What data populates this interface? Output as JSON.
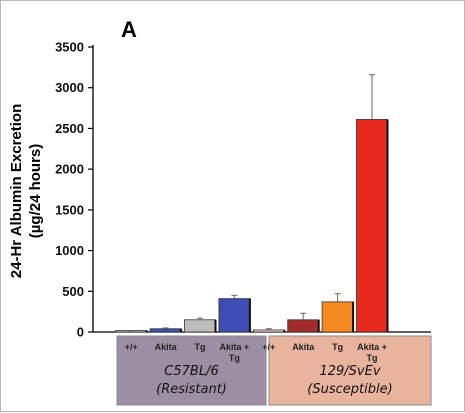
{
  "panel_label": "A",
  "chart_data": {
    "type": "bar",
    "title": "",
    "xlabel": "",
    "ylabel": "24-Hr Albumin Excretion",
    "ylabel_line2": "(µg/24 hours)",
    "ylim": [
      0,
      3500
    ],
    "yticks": [
      0,
      500,
      1000,
      1500,
      2000,
      2500,
      3000,
      3500
    ],
    "ytick_labels": [
      "0",
      "500",
      "1000",
      "1500",
      "2000",
      "2500",
      "3000",
      "3500"
    ],
    "grid": false,
    "categories": [
      "+/+",
      "Akita",
      "Tg",
      "Akita + Tg",
      "+/+",
      "Akita",
      "Tg",
      "Akita + Tg"
    ],
    "values": [
      10,
      40,
      150,
      410,
      25,
      150,
      370,
      2610
    ],
    "errors": [
      5,
      10,
      20,
      40,
      15,
      80,
      100,
      550
    ],
    "colors": [
      "#c8c8e8",
      "#3a55b8",
      "#bdbdbd",
      "#3d4db5",
      "#f3d0e0",
      "#a52a2a",
      "#f58a20",
      "#e8291e"
    ],
    "groups": [
      {
        "line1": "C57BL/6",
        "line2": "(Resistant)",
        "color": "#9d8fa3"
      },
      {
        "line1": "129/SvEv",
        "line2": "(Susceptible)",
        "color": "#e8b49d"
      }
    ]
  }
}
